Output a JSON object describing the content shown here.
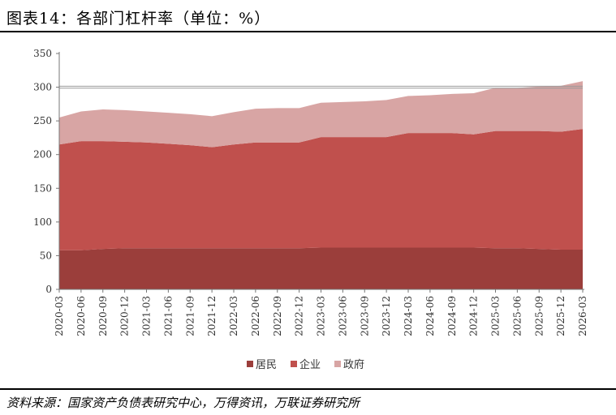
{
  "header": {
    "title": "图表14：各部门杠杆率（单位：%）"
  },
  "footer": {
    "source": "资料来源：国家资产负债表研究中心，万得资讯，万联证券研究所"
  },
  "colors": {
    "household": "#9B3E3B",
    "corporate": "#C0504D",
    "government": "#D8A5A4"
  },
  "chart_data": {
    "type": "area",
    "stacked": true,
    "title": "",
    "xlabel": "",
    "ylabel": "",
    "ylim": [
      0,
      350
    ],
    "yticks": [
      0,
      50,
      100,
      150,
      200,
      250,
      300,
      350
    ],
    "grid": false,
    "legend_position": "bottom",
    "x": [
      "2020-03",
      "2020-06",
      "2020-09",
      "2020-12",
      "2021-03",
      "2021-06",
      "2021-09",
      "2021-12",
      "2022-03",
      "2022-06",
      "2022-09",
      "2022-12",
      "2023-03",
      "2023-06",
      "2023-09",
      "2023-12",
      "2024-03",
      "2024-06",
      "2024-09",
      "2024-12",
      "2025-03",
      "2025-06",
      "2025-09",
      "2025-12",
      "2026-03"
    ],
    "series": [
      {
        "name": "居民",
        "values": [
          58,
          58,
          60,
          61,
          61,
          61,
          61,
          61,
          61,
          61,
          61,
          61,
          62,
          62,
          62,
          62,
          62,
          62,
          62,
          62,
          61,
          61,
          60,
          59,
          59
        ]
      },
      {
        "name": "企业",
        "values": [
          157,
          162,
          160,
          158,
          157,
          155,
          153,
          150,
          154,
          157,
          157,
          157,
          164,
          164,
          164,
          164,
          170,
          170,
          170,
          168,
          174,
          174,
          175,
          175,
          179
        ]
      },
      {
        "name": "政府",
        "values": [
          40,
          44,
          47,
          47,
          46,
          46,
          46,
          46,
          48,
          50,
          51,
          51,
          51,
          52,
          53,
          55,
          55,
          56,
          58,
          61,
          64,
          64,
          66,
          68,
          71
        ]
      }
    ]
  }
}
